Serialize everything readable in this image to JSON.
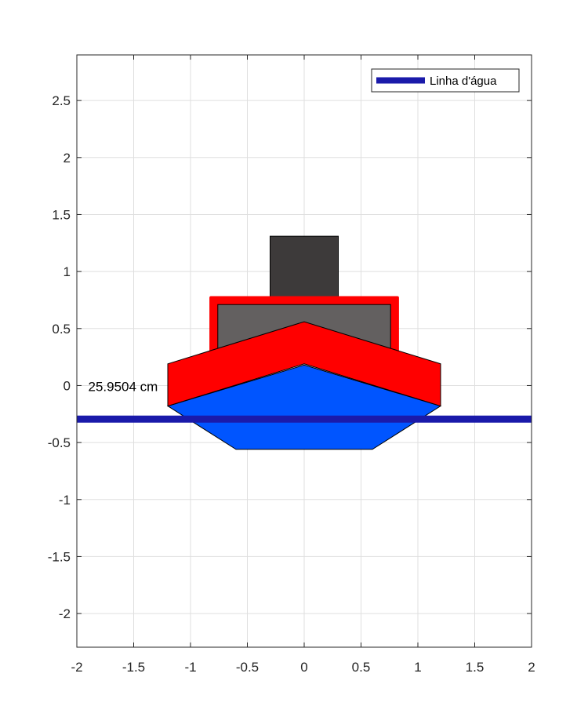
{
  "chart_data": {
    "type": "line",
    "title": "",
    "xlabel": "",
    "ylabel": "",
    "xlim": [
      -2,
      2
    ],
    "ylim": [
      -2.2952,
      2.9
    ],
    "xticks": [
      -2,
      -1.5,
      -1,
      -0.5,
      0,
      0.5,
      1,
      1.5,
      2
    ],
    "yticks": [
      -2,
      -1.5,
      -1,
      -0.5,
      0,
      0.5,
      1,
      1.5,
      2,
      2.5
    ],
    "xtick_labels": [
      "-2",
      "-1.5",
      "-1",
      "-0.5",
      "0",
      "0.5",
      "1",
      "1.5",
      "2"
    ],
    "ytick_labels": [
      "-2",
      "-1.5",
      "-1",
      "-0.5",
      "0",
      "0.5",
      "1",
      "1.5",
      "2",
      "2.5"
    ],
    "grid": true,
    "legend_position": "top-right",
    "series": [
      {
        "name": "Linha d'água",
        "color": "#1a1aaa",
        "x": [
          -2,
          2
        ],
        "y": [
          -0.2952,
          -0.2952
        ]
      }
    ],
    "shapes": [
      {
        "part": "chimney",
        "fill": "#3d3a3a",
        "edge": "#000000",
        "points": [
          [
            -0.3,
            1.31
          ],
          [
            0.3,
            1.31
          ],
          [
            0.3,
            0.78
          ],
          [
            -0.3,
            0.78
          ]
        ]
      },
      {
        "part": "cabin-frame",
        "fill": "#ff0000",
        "edge": "#ff0000",
        "points": [
          [
            -0.82,
            0.77
          ],
          [
            0.82,
            0.77
          ],
          [
            0.82,
            0.3
          ],
          [
            -0.82,
            0.3
          ]
        ]
      },
      {
        "part": "cabin",
        "fill": "#636060",
        "edge": "#000000",
        "points": [
          [
            -0.76,
            0.71
          ],
          [
            0.76,
            0.71
          ],
          [
            0.76,
            0.3
          ],
          [
            -0.76,
            0.3
          ]
        ]
      },
      {
        "part": "hull",
        "fill": "#0055ff",
        "edge": "#000000",
        "points": [
          [
            -1.2,
            -0.18
          ],
          [
            0,
            0.18
          ],
          [
            1.2,
            -0.18
          ],
          [
            0.6,
            -0.56
          ],
          [
            -0.6,
            -0.56
          ]
        ]
      },
      {
        "part": "deck",
        "fill": "#ff0000",
        "edge": "#000000",
        "points": [
          [
            -1.2,
            0.19
          ],
          [
            0,
            0.56
          ],
          [
            1.2,
            0.19
          ],
          [
            1.2,
            -0.18
          ],
          [
            0,
            0.19
          ],
          [
            -1.2,
            -0.18
          ]
        ]
      }
    ],
    "annotations": [
      {
        "text": "25.9504 cm",
        "x": -1.9,
        "y": -0.05
      }
    ],
    "legend": [
      {
        "label": "Linha d'água",
        "color": "#1a1aaa"
      }
    ]
  }
}
